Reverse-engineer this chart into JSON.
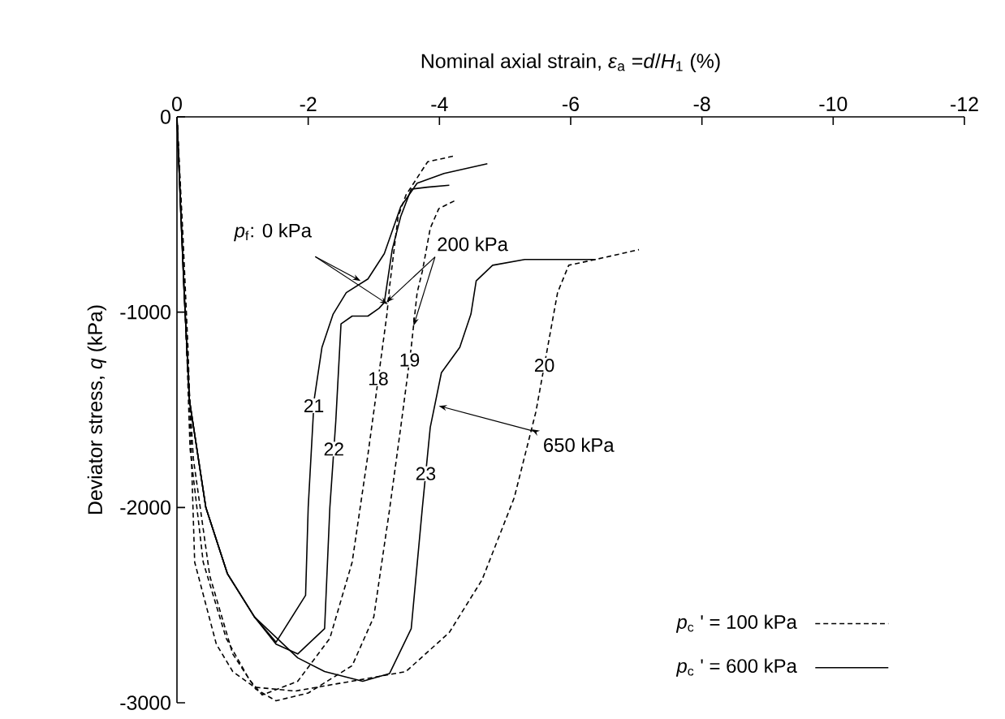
{
  "chart_data": {
    "type": "line",
    "xlabel": "Nominal axial strain, *ε*$_{a}$ =*d*/*H*$_{1}$ (%)",
    "ylabel": "Deviator stress, *q* (kPa)",
    "xlim": [
      0,
      -12
    ],
    "xticks": [
      0,
      -2,
      -4,
      -6,
      -8,
      -10,
      -12
    ],
    "ylim": [
      -3000,
      0
    ],
    "yticks": [
      0,
      -1000,
      -2000,
      -3000
    ],
    "series": [
      {
        "name": "18",
        "color": "#000000",
        "line_style": "dashed",
        "x": [
          0,
          -0.08,
          -0.15,
          -0.2,
          -0.4,
          -0.75,
          -1.1,
          -1.3,
          -1.84,
          -2.33,
          -2.67,
          -2.91,
          -3.08,
          -3.2,
          -3.24,
          -3.37,
          -3.49,
          -3.82,
          -4.23
        ],
        "values": [
          0,
          -600,
          -1200,
          -1700,
          -2280,
          -2670,
          -2880,
          -2960,
          -2890,
          -2670,
          -2280,
          -1730,
          -1310,
          -1010,
          -870,
          -510,
          -400,
          -230,
          -200
        ]
      },
      {
        "name": "19",
        "color": "#000000",
        "line_style": "dashed",
        "x": [
          0,
          -0.08,
          -0.15,
          -0.25,
          -0.5,
          -0.85,
          -1.2,
          -1.51,
          -2.0,
          -2.67,
          -3.0,
          -3.24,
          -3.41,
          -3.57,
          -3.66,
          -3.74,
          -3.86,
          -3.99,
          -4.23
        ],
        "values": [
          0,
          -600,
          -1200,
          -1750,
          -2350,
          -2750,
          -2930,
          -2990,
          -2950,
          -2810,
          -2560,
          -2010,
          -1590,
          -1180,
          -900,
          -790,
          -570,
          -470,
          -430
        ]
      },
      {
        "name": "20",
        "color": "#000000",
        "line_style": "dashed",
        "x": [
          0,
          -0.09,
          -0.17,
          -0.27,
          -0.6,
          -0.85,
          -1.18,
          -1.8,
          -2.83,
          -3.49,
          -4.15,
          -4.65,
          -5.14,
          -5.47,
          -5.8,
          -5.97,
          -6.38,
          -7.04
        ],
        "values": [
          0,
          -600,
          -1200,
          -2280,
          -2700,
          -2840,
          -2920,
          -2940,
          -2880,
          -2840,
          -2640,
          -2370,
          -1950,
          -1510,
          -900,
          -760,
          -730,
          -680
        ]
      },
      {
        "name": "21",
        "color": "#000000",
        "line_style": "solid",
        "x": [
          0,
          -0.06,
          -0.11,
          -0.19,
          -0.44,
          -0.77,
          -1.18,
          -1.51,
          -1.96,
          -2.0,
          -2.09,
          -2.21,
          -2.38,
          -2.58,
          -2.91,
          -3.16,
          -3.41,
          -3.66,
          -4.07,
          -4.73
        ],
        "values": [
          0,
          -500,
          -900,
          -1450,
          -2000,
          -2340,
          -2560,
          -2690,
          -2450,
          -2000,
          -1450,
          -1180,
          -1010,
          -900,
          -830,
          -700,
          -460,
          -340,
          -290,
          -240
        ]
      },
      {
        "name": "22",
        "color": "#000000",
        "line_style": "solid",
        "x": [
          0,
          -0.06,
          -0.11,
          -0.19,
          -0.44,
          -0.77,
          -1.18,
          -1.51,
          -1.84,
          -2.25,
          -2.33,
          -2.42,
          -2.5,
          -2.67,
          -2.91,
          -3.08,
          -3.16,
          -3.28,
          -3.41,
          -3.57,
          -3.82,
          -4.15
        ],
        "values": [
          0,
          -500,
          -900,
          -1450,
          -2000,
          -2340,
          -2560,
          -2700,
          -2750,
          -2620,
          -2000,
          -1560,
          -1060,
          -1020,
          -1020,
          -980,
          -950,
          -680,
          -510,
          -370,
          -360,
          -350
        ]
      },
      {
        "name": "23",
        "color": "#000000",
        "line_style": "solid",
        "x": [
          0,
          -0.06,
          -0.11,
          -0.19,
          -0.44,
          -0.77,
          -1.18,
          -1.84,
          -2.25,
          -2.83,
          -3.24,
          -3.57,
          -3.74,
          -3.86,
          -4.03,
          -4.31,
          -4.48,
          -4.56,
          -4.81,
          -5.3,
          -6.38
        ],
        "values": [
          0,
          -500,
          -900,
          -1450,
          -2000,
          -2340,
          -2560,
          -2770,
          -2840,
          -2890,
          -2850,
          -2620,
          -2000,
          -1590,
          -1310,
          -1180,
          -1010,
          -840,
          -760,
          -730,
          -730
        ]
      }
    ],
    "annotations": [
      {
        "text": "*p*$_{f}$: 0 kPa",
        "x": -2.8,
        "y": -840
      },
      {
        "text": "200 kPa",
        "x": -3.19,
        "y": -950
      },
      {
        "text": "650 kPa",
        "x": -3.99,
        "y": -1480
      },
      "*p*$_{c}$ ' = 100 kPa",
      "*p*$_{c}$ ' = 600 kPa"
    ]
  }
}
